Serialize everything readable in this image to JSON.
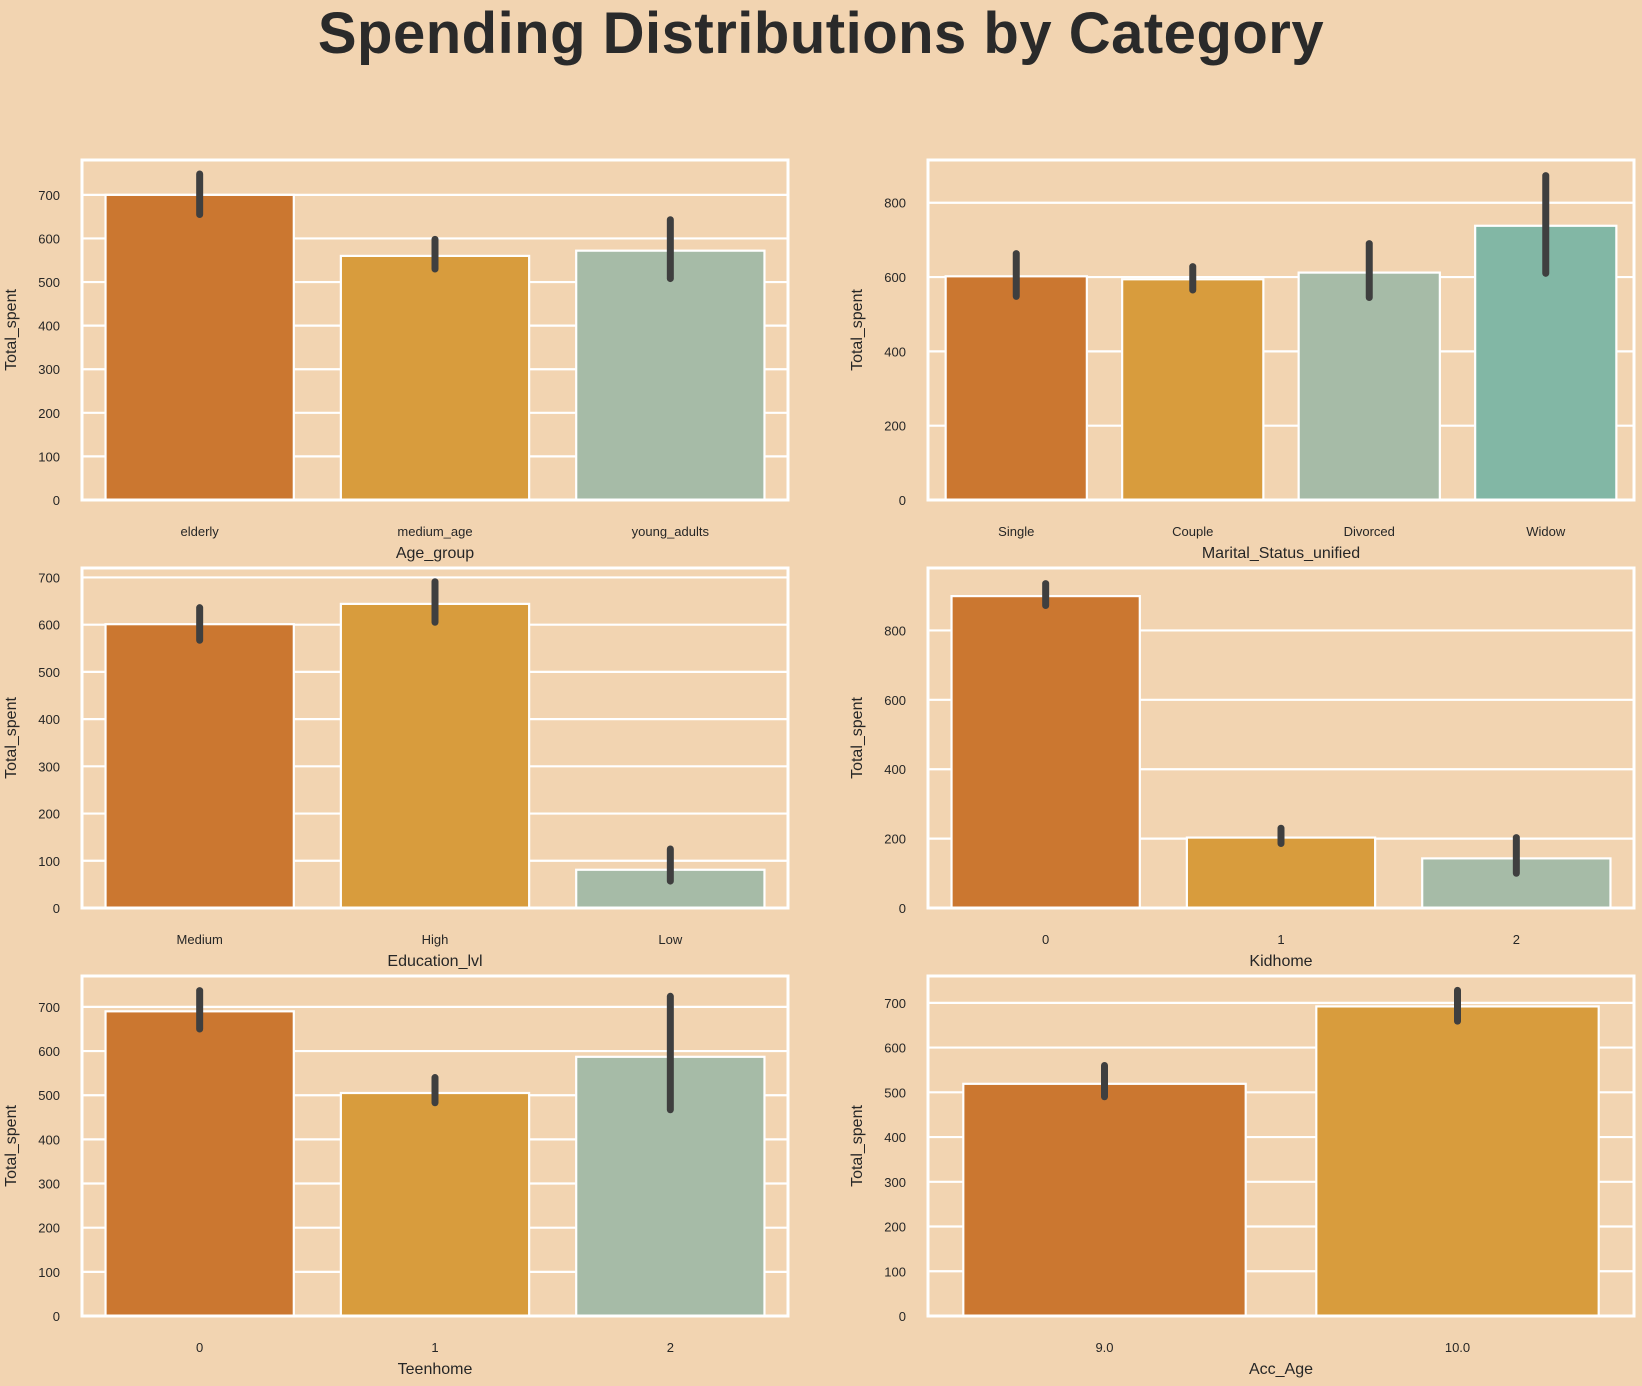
{
  "title": "Spending Distributions by Category",
  "colors": {
    "background": "#f2d4b1",
    "gridline": "#ffffff",
    "error_bar": "#3f3f3f",
    "palette": [
      "#cb7730",
      "#d89c3d",
      "#a6bba7",
      "#82b7a5"
    ]
  },
  "chart_data": [
    {
      "type": "bar",
      "categories": [
        "elderly",
        "medium_age",
        "young_adults"
      ],
      "values": [
        700,
        560,
        572
      ],
      "ci": [
        [
          655,
          748
        ],
        [
          530,
          598
        ],
        [
          508,
          643
        ]
      ],
      "xlabel": "Age_group",
      "ylabel": "Total_spent",
      "ylim": [
        0,
        780
      ],
      "yticks": [
        0,
        100,
        200,
        300,
        400,
        500,
        600,
        700
      ],
      "grid": true
    },
    {
      "type": "bar",
      "categories": [
        "Single",
        "Couple",
        "Divorced",
        "Widow"
      ],
      "values": [
        602,
        594,
        612,
        738
      ],
      "ci": [
        [
          548,
          663
        ],
        [
          565,
          628
        ],
        [
          545,
          690
        ],
        [
          610,
          873
        ]
      ],
      "xlabel": "Marital_Status_unified",
      "ylabel": "Total_spent",
      "ylim": [
        0,
        915
      ],
      "yticks": [
        0,
        200,
        400,
        600,
        800
      ],
      "grid": true
    },
    {
      "type": "bar",
      "categories": [
        "Medium",
        "High",
        "Low"
      ],
      "values": [
        601,
        644,
        81
      ],
      "ci": [
        [
          567,
          636
        ],
        [
          605,
          691
        ],
        [
          57,
          125
        ]
      ],
      "xlabel": "Education_lvl",
      "ylabel": "Total_spent",
      "ylim": [
        0,
        720
      ],
      "yticks": [
        0,
        100,
        200,
        300,
        400,
        500,
        600,
        700
      ],
      "grid": true
    },
    {
      "type": "bar",
      "categories": [
        "0",
        "1",
        "2"
      ],
      "values": [
        899,
        203,
        143
      ],
      "ci": [
        [
          872,
          935
        ],
        [
          186,
          230
        ],
        [
          100,
          203
        ]
      ],
      "xlabel": "Kidhome",
      "ylabel": "Total_spent",
      "ylim": [
        0,
        980
      ],
      "yticks": [
        0,
        200,
        400,
        600,
        800
      ],
      "grid": true
    },
    {
      "type": "bar",
      "categories": [
        "0",
        "1",
        "2"
      ],
      "values": [
        690,
        505,
        587
      ],
      "ci": [
        [
          650,
          737
        ],
        [
          483,
          540
        ],
        [
          467,
          724
        ]
      ],
      "xlabel": "Teenhome",
      "ylabel": "Total_spent",
      "ylim": [
        0,
        770
      ],
      "yticks": [
        0,
        100,
        200,
        300,
        400,
        500,
        600,
        700
      ],
      "grid": true
    },
    {
      "type": "bar",
      "categories": [
        "9.0",
        "10.0"
      ],
      "values": [
        519,
        692
      ],
      "ci": [
        [
          490,
          560
        ],
        [
          659,
          728
        ]
      ],
      "xlabel": "Acc_Age",
      "ylabel": "Total_spent",
      "ylim": [
        0,
        760
      ],
      "yticks": [
        0,
        100,
        200,
        300,
        400,
        500,
        600,
        700
      ],
      "grid": true
    }
  ]
}
